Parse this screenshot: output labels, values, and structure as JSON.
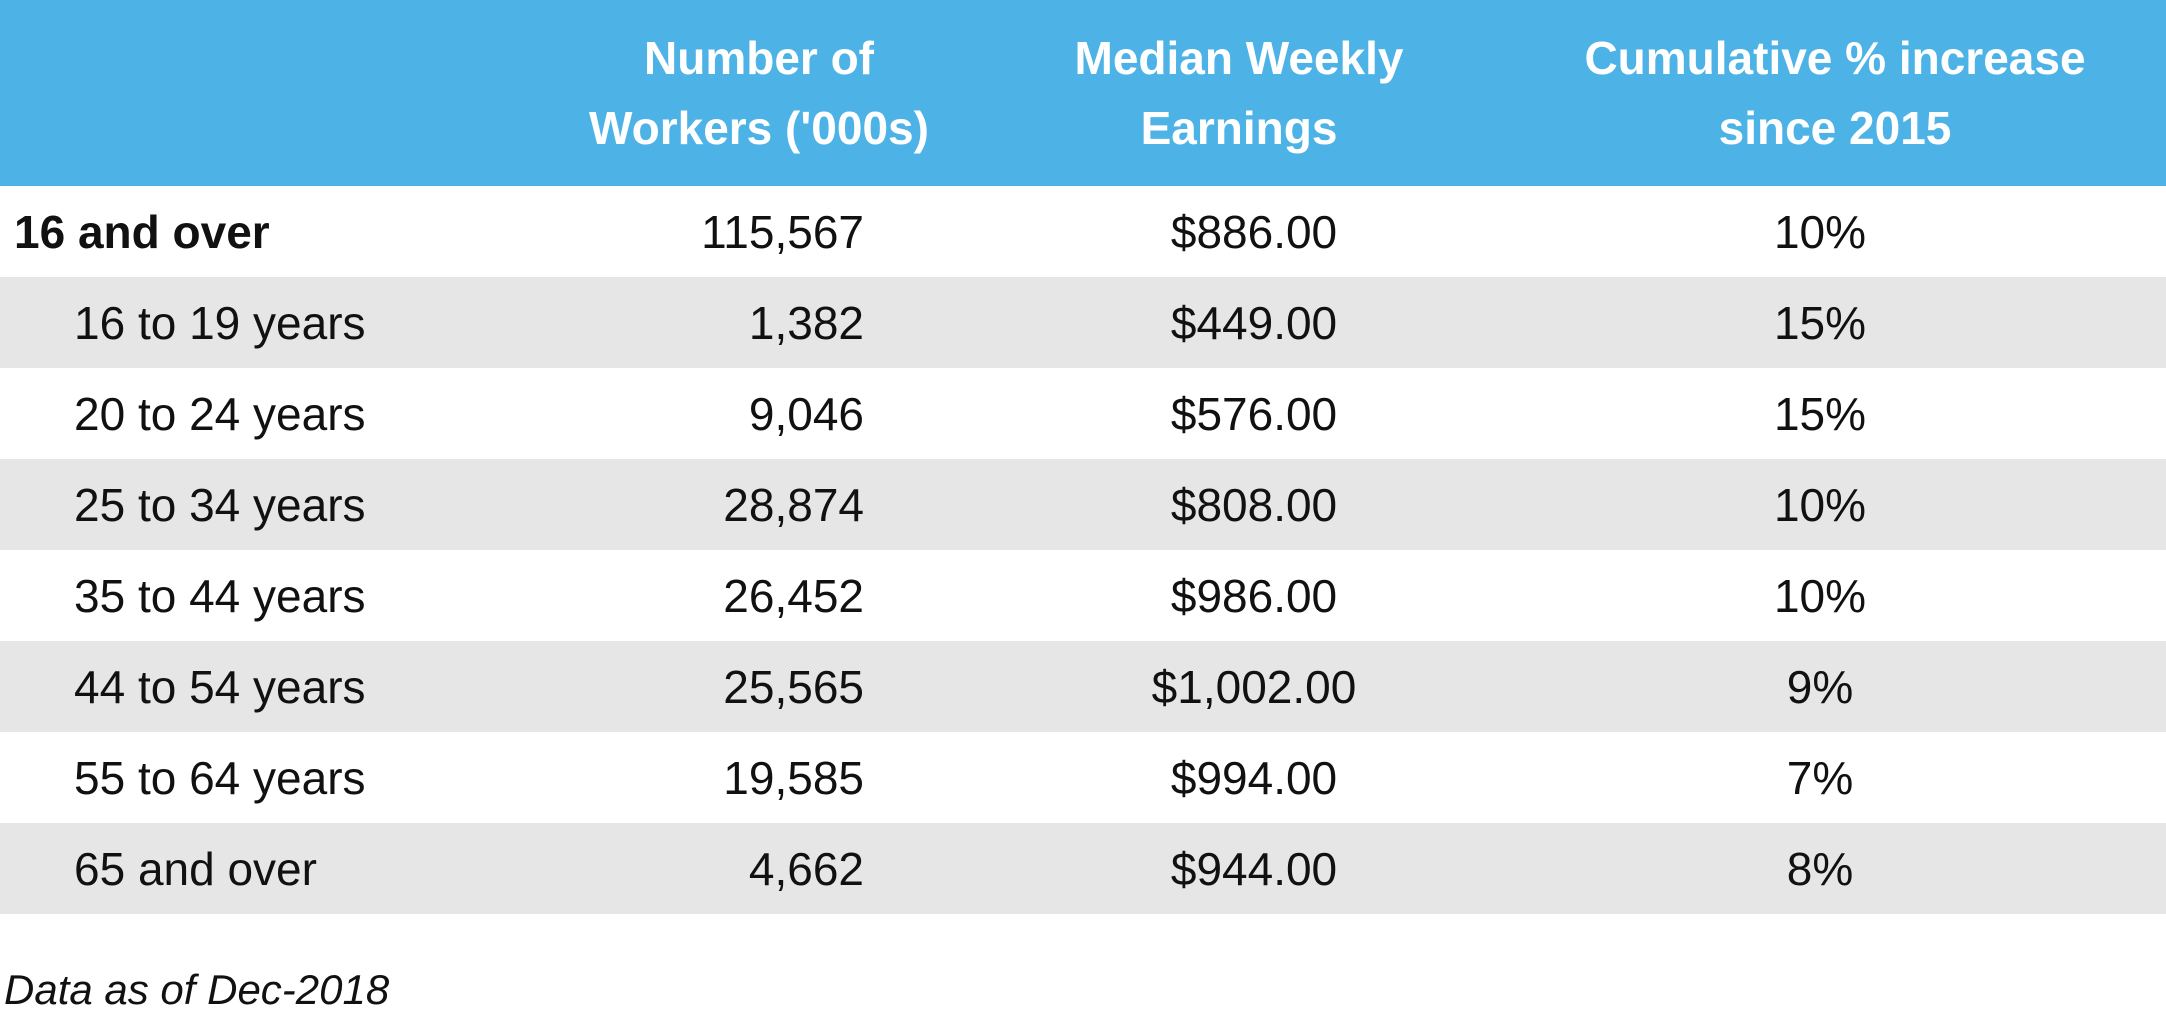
{
  "chart_data": {
    "type": "table",
    "columns": [
      "",
      "Number of Workers ('000s)",
      "Median Weekly Earnings",
      "Cumulative % increase since 2015"
    ],
    "header": {
      "label": "",
      "workers_line1": "Number of",
      "workers_line2": "Workers ('000s)",
      "earnings_line1": "Median Weekly",
      "earnings_line2": "Earnings",
      "pct_line1": "Cumulative % increase",
      "pct_line2": "since 2015"
    },
    "rows": [
      {
        "label": "16 and over",
        "workers": "115,567",
        "earnings": "$886.00",
        "pct": "10%",
        "total": true
      },
      {
        "label": "16 to 19 years",
        "workers": "1,382",
        "earnings": "$449.00",
        "pct": "15%"
      },
      {
        "label": "20 to 24 years",
        "workers": "9,046",
        "earnings": "$576.00",
        "pct": "15%"
      },
      {
        "label": "25 to 34 years",
        "workers": "28,874",
        "earnings": "$808.00",
        "pct": "10%"
      },
      {
        "label": "35 to 44 years",
        "workers": "26,452",
        "earnings": "$986.00",
        "pct": "10%"
      },
      {
        "label": "44 to 54 years",
        "workers": "25,565",
        "earnings": "$1,002.00",
        "pct": "9%"
      },
      {
        "label": "55 to 64 years",
        "workers": "19,585",
        "earnings": "$994.00",
        "pct": "7%"
      },
      {
        "label": "65 and over",
        "workers": "4,662",
        "earnings": "$944.00",
        "pct": "8%"
      }
    ],
    "footnote": "Data as of Dec-2018"
  },
  "colors": {
    "header_background": "#4db3e6",
    "header_text": "#ffffff",
    "shaded_row": "#e6e6e6"
  }
}
